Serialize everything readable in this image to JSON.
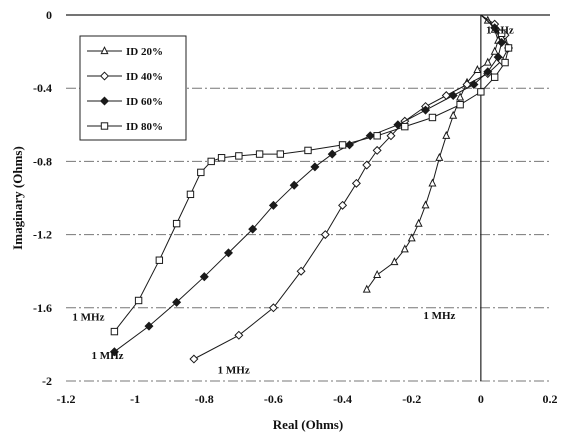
{
  "chart_data": {
    "type": "line",
    "title": "",
    "xlabel": "Real (Ohms)",
    "ylabel": "Imaginary (Ohms)",
    "xlim": [
      -1.2,
      0.2
    ],
    "ylim": [
      -2,
      0
    ],
    "xticks": [
      "-1.2",
      "-1",
      "-0.8",
      "-0.6",
      "-0.4",
      "-0.2",
      "0",
      "0.2"
    ],
    "yticks": [
      "0",
      "-0.4",
      "-0.8",
      "-1.2",
      "-1.6",
      "-2"
    ],
    "grid": "horizontal dash-dot",
    "legend_position": "top-left",
    "series": [
      {
        "name": "ID 20%",
        "marker": "triangle",
        "x": [
          0.0,
          0.02,
          0.04,
          0.05,
          0.04,
          0.02,
          -0.01,
          -0.04,
          -0.06,
          -0.08,
          -0.1,
          -0.12,
          -0.14,
          -0.16,
          -0.18,
          -0.2,
          -0.22,
          -0.25,
          -0.3,
          -0.33
        ],
        "y": [
          0.0,
          -0.03,
          -0.08,
          -0.14,
          -0.2,
          -0.26,
          -0.3,
          -0.37,
          -0.45,
          -0.55,
          -0.66,
          -0.78,
          -0.92,
          -1.04,
          -1.14,
          -1.22,
          -1.28,
          -1.35,
          -1.42,
          -1.5
        ]
      },
      {
        "name": "ID 40%",
        "marker": "diamond",
        "x": [
          0.0,
          0.04,
          0.07,
          0.08,
          0.06,
          0.02,
          -0.04,
          -0.1,
          -0.16,
          -0.22,
          -0.26,
          -0.3,
          -0.33,
          -0.36,
          -0.4,
          -0.45,
          -0.52,
          -0.6,
          -0.7,
          -0.83
        ],
        "y": [
          0.0,
          -0.05,
          -0.11,
          -0.18,
          -0.25,
          -0.32,
          -0.38,
          -0.44,
          -0.5,
          -0.58,
          -0.66,
          -0.74,
          -0.82,
          -0.92,
          -1.04,
          -1.2,
          -1.4,
          -1.6,
          -1.75,
          -1.88
        ]
      },
      {
        "name": "ID 60%",
        "marker": "filled diamond",
        "x": [
          0.0,
          0.04,
          0.06,
          0.05,
          0.02,
          -0.02,
          -0.08,
          -0.16,
          -0.24,
          -0.32,
          -0.38,
          -0.43,
          -0.48,
          -0.54,
          -0.6,
          -0.66,
          -0.73,
          -0.8,
          -0.88,
          -0.96,
          -1.06
        ],
        "y": [
          0.0,
          -0.07,
          -0.15,
          -0.23,
          -0.31,
          -0.38,
          -0.44,
          -0.52,
          -0.6,
          -0.66,
          -0.71,
          -0.76,
          -0.83,
          -0.93,
          -1.04,
          -1.17,
          -1.3,
          -1.43,
          -1.57,
          -1.7,
          -1.84
        ]
      },
      {
        "name": "ID 80%",
        "marker": "square",
        "x": [
          0.0,
          0.06,
          0.08,
          0.07,
          0.04,
          0.0,
          -0.06,
          -0.14,
          -0.22,
          -0.3,
          -0.4,
          -0.5,
          -0.58,
          -0.64,
          -0.7,
          -0.75,
          -0.78,
          -0.81,
          -0.84,
          -0.88,
          -0.93,
          -0.99,
          -1.06
        ],
        "y": [
          0.0,
          -0.1,
          -0.18,
          -0.26,
          -0.34,
          -0.42,
          -0.49,
          -0.56,
          -0.61,
          -0.66,
          -0.71,
          -0.74,
          -0.76,
          -0.76,
          -0.77,
          -0.78,
          -0.8,
          -0.86,
          -0.98,
          -1.14,
          -1.34,
          -1.56,
          -1.73
        ]
      }
    ],
    "annotations": [
      {
        "text": "1 kHz",
        "x": 0.055,
        "y": -0.1
      },
      {
        "text": "1 MHz",
        "x": -0.12,
        "y": -1.66
      },
      {
        "text": "1 MHz",
        "x": -0.715,
        "y": -1.96
      },
      {
        "text": "1 MHz",
        "x": -1.08,
        "y": -1.88
      },
      {
        "text": "1 MHz",
        "x": -1.135,
        "y": -1.67
      }
    ],
    "colors": {
      "lines": "#1a1a1a",
      "grid": "#777777",
      "axes": "#222222"
    }
  }
}
